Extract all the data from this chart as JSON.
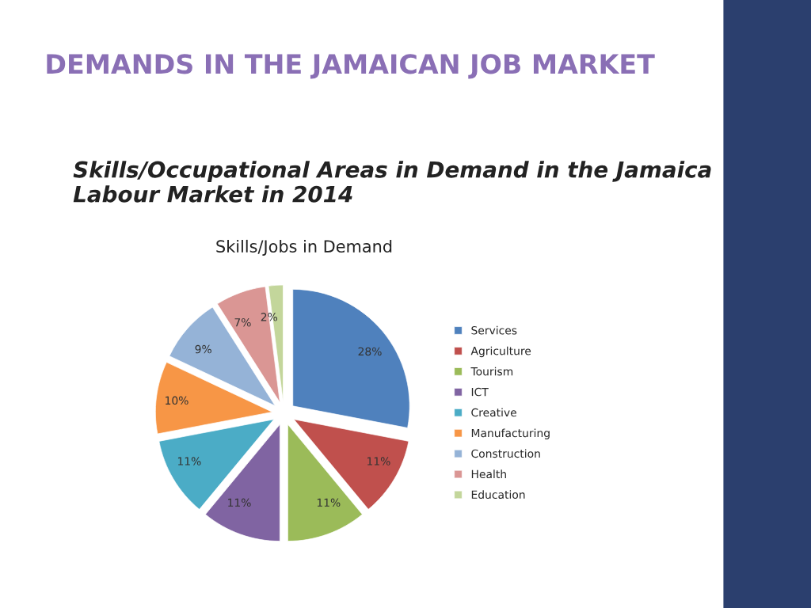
{
  "chart_data": {
    "type": "pie",
    "title": "DEMANDS IN THE JAMAICAN JOB MARKET",
    "subtitle": "Skills/Occupational Areas in Demand in the Jamaica Labour Market in 2014",
    "annotations": [
      "Skills/Jobs in Demand"
    ],
    "categories": [
      "Services",
      "Agriculture",
      "Tourism",
      "ICT",
      "Creative",
      "Manufacturing",
      "Construction",
      "Health",
      "Education"
    ],
    "values": [
      28,
      11,
      11,
      11,
      11,
      10,
      9,
      7,
      2
    ],
    "value_labels": [
      "28%",
      "11%",
      "11%",
      "11%",
      "11%",
      "10%",
      "9%",
      "7%",
      "2%"
    ],
    "colors": [
      "#4f81bd",
      "#c0504d",
      "#9bbb59",
      "#8064a2",
      "#4bacc6",
      "#f79646",
      "#95b3d7",
      "#da9694",
      "#c3d69b"
    ],
    "legend": "right"
  }
}
